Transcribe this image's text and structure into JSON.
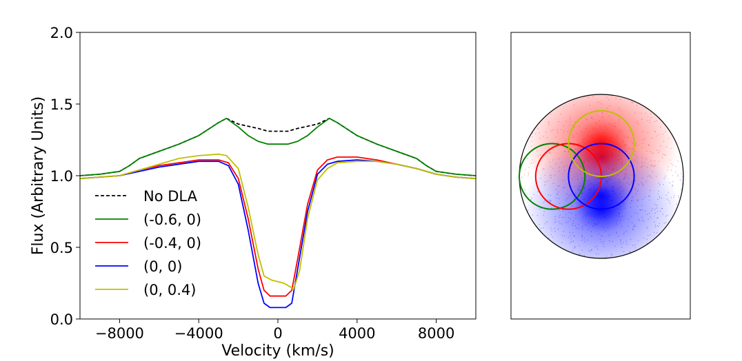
{
  "chart_data": [
    {
      "type": "line",
      "title": "",
      "xlabel": "Velocity (km/s)",
      "ylabel": "Flux (Arbitrary Units)",
      "xlim": [
        -10000,
        10000
      ],
      "ylim": [
        0.0,
        2.0
      ],
      "grid": false,
      "legend_position": "lower-left",
      "x_ticks": [
        -8000,
        -4000,
        0,
        4000,
        8000
      ],
      "x_tick_labels": [
        "−8000",
        "−4000",
        "0",
        "4000",
        "8000"
      ],
      "y_ticks": [
        0.0,
        0.5,
        1.0,
        1.5,
        2.0
      ],
      "y_tick_labels": [
        "0.0",
        "0.5",
        "1.0",
        "1.5",
        "2.0"
      ],
      "series": [
        {
          "name": "No DLA",
          "color": "#000000",
          "dash": true,
          "x": [
            -10000,
            -9000,
            -8000,
            -7500,
            -7000,
            -6000,
            -5000,
            -4000,
            -3000,
            -2600,
            -2000,
            -1000,
            -500,
            0,
            500,
            1000,
            2000,
            2600,
            3000,
            4000,
            5000,
            6000,
            7000,
            7500,
            8000,
            9000,
            10000
          ],
          "y": [
            1.0,
            1.01,
            1.03,
            1.07,
            1.12,
            1.17,
            1.22,
            1.28,
            1.37,
            1.4,
            1.36,
            1.33,
            1.31,
            1.31,
            1.31,
            1.33,
            1.36,
            1.4,
            1.37,
            1.28,
            1.22,
            1.17,
            1.12,
            1.07,
            1.03,
            1.01,
            1.0
          ]
        },
        {
          "name": "(-0.6, 0)",
          "color": "#008000",
          "dash": false,
          "x": [
            -10000,
            -9000,
            -8000,
            -7500,
            -7000,
            -6000,
            -5000,
            -4000,
            -3000,
            -2600,
            -2000,
            -1500,
            -1000,
            -500,
            0,
            500,
            1000,
            1500,
            2000,
            2600,
            3000,
            4000,
            5000,
            6000,
            7000,
            7500,
            8000,
            9000,
            10000
          ],
          "y": [
            1.0,
            1.01,
            1.03,
            1.07,
            1.12,
            1.17,
            1.22,
            1.28,
            1.37,
            1.4,
            1.34,
            1.28,
            1.24,
            1.22,
            1.22,
            1.22,
            1.24,
            1.28,
            1.34,
            1.4,
            1.37,
            1.28,
            1.22,
            1.17,
            1.12,
            1.07,
            1.03,
            1.01,
            1.0
          ]
        },
        {
          "name": "(-0.4, 0)",
          "color": "#ff0000",
          "dash": false,
          "x": [
            -10000,
            -9000,
            -8000,
            -7000,
            -6000,
            -5000,
            -4000,
            -3000,
            -2500,
            -2000,
            -1500,
            -1000,
            -700,
            -400,
            0,
            400,
            700,
            1000,
            1500,
            2000,
            2500,
            3000,
            4000,
            5000,
            6000,
            7000,
            8000,
            9000,
            10000
          ],
          "y": [
            0.98,
            0.99,
            1.0,
            1.04,
            1.07,
            1.09,
            1.11,
            1.11,
            1.09,
            0.98,
            0.7,
            0.35,
            0.2,
            0.16,
            0.16,
            0.16,
            0.2,
            0.42,
            0.8,
            1.04,
            1.11,
            1.13,
            1.13,
            1.11,
            1.08,
            1.05,
            1.01,
            0.99,
            0.98
          ]
        },
        {
          "name": "(0, 0)",
          "color": "#0000ff",
          "dash": false,
          "x": [
            -10000,
            -9000,
            -8000,
            -7000,
            -6000,
            -5000,
            -4000,
            -3000,
            -2500,
            -2000,
            -1500,
            -1000,
            -700,
            -400,
            0,
            400,
            700,
            1000,
            1500,
            2000,
            2500,
            3000,
            4000,
            5000,
            6000,
            7000,
            8000,
            9000,
            10000
          ],
          "y": [
            0.98,
            0.99,
            1.0,
            1.03,
            1.06,
            1.08,
            1.1,
            1.1,
            1.07,
            0.94,
            0.62,
            0.25,
            0.11,
            0.08,
            0.08,
            0.08,
            0.11,
            0.35,
            0.75,
            1.01,
            1.08,
            1.1,
            1.11,
            1.1,
            1.08,
            1.05,
            1.01,
            0.99,
            0.98
          ]
        },
        {
          "name": "(0, 0.4)",
          "color": "#bfbf00",
          "dash": false,
          "x": [
            -10000,
            -9000,
            -8000,
            -7000,
            -6000,
            -5000,
            -4000,
            -3000,
            -2600,
            -2000,
            -1500,
            -1000,
            -700,
            -300,
            0,
            300,
            800,
            1100,
            1500,
            2000,
            2500,
            3000,
            4000,
            5000,
            6000,
            7000,
            8000,
            9000,
            10000
          ],
          "y": [
            0.98,
            0.99,
            1.0,
            1.04,
            1.08,
            1.12,
            1.14,
            1.15,
            1.14,
            1.05,
            0.78,
            0.45,
            0.3,
            0.27,
            0.26,
            0.25,
            0.21,
            0.34,
            0.7,
            0.97,
            1.05,
            1.09,
            1.1,
            1.1,
            1.08,
            1.05,
            1.01,
            0.99,
            0.98
          ]
        }
      ]
    },
    {
      "type": "scatter",
      "title": "",
      "description_free": true,
      "domain": [
        -1.2,
        1.2
      ],
      "regions": [
        {
          "name": "redshifted emission",
          "color": "#ff0000",
          "cx": 0.0,
          "cy": 0.4
        },
        {
          "name": "blueshifted emission",
          "color": "#0000ff",
          "cx": 0.0,
          "cy": -0.4
        }
      ],
      "circles": [
        {
          "name": "broad line region",
          "cx": 0.0,
          "cy": 0.0,
          "r": 1.0,
          "color": "#000000"
        },
        {
          "name": "(-0.6, 0)",
          "cx": -0.6,
          "cy": 0.0,
          "r": 0.4,
          "color": "#008000"
        },
        {
          "name": "(-0.4, 0)",
          "cx": -0.4,
          "cy": 0.0,
          "r": 0.4,
          "color": "#ff0000"
        },
        {
          "name": "(0, 0)",
          "cx": 0.0,
          "cy": 0.0,
          "r": 0.4,
          "color": "#0000ff"
        },
        {
          "name": "(0, 0.4)",
          "cx": 0.0,
          "cy": 0.4,
          "r": 0.4,
          "color": "#bfbf00"
        }
      ]
    }
  ]
}
